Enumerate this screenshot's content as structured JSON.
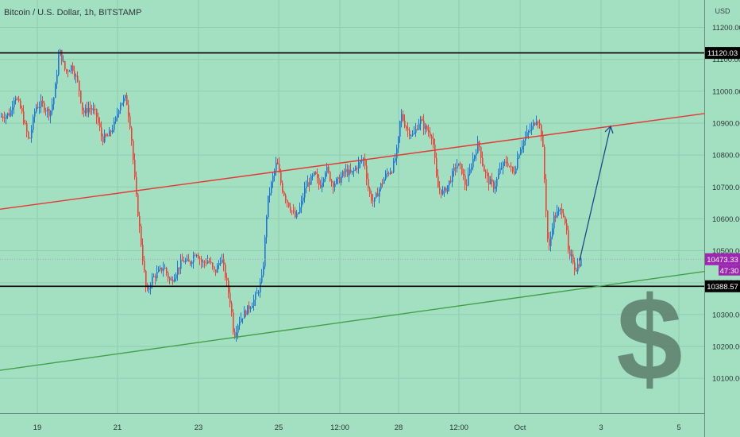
{
  "header": {
    "symbol_label": "Bitcoin / U.S. Dollar, 1h, BITSTAMP"
  },
  "chart_data": {
    "type": "candlestick",
    "symbol": "Bitcoin / U.S. Dollar, 1h, BITSTAMP",
    "currency": "USD",
    "ylim": [
      10035,
      11230
    ],
    "y_ticks": [
      10100,
      10200,
      10300,
      10400,
      10500,
      10600,
      10700,
      10800,
      10900,
      11000,
      11100,
      11200
    ],
    "y_tick_labels": [
      "10100.00",
      "10200.00",
      "10300.00",
      "10400.00",
      "10500.00",
      "10600.00",
      "10700.00",
      "10800.00",
      "10900.00",
      "11000.00",
      "11100.00",
      "11200.00"
    ],
    "x_tick_labels": [
      "19",
      "21",
      "23",
      "25",
      "12:00",
      "28",
      "12:00",
      "Oct",
      "3",
      "5"
    ],
    "grid": true,
    "horizontal_levels": [
      {
        "value": 11120.03,
        "label": "11120.03",
        "color": "#000000"
      },
      {
        "value": 10388.57,
        "label": "10388.57",
        "color": "#000000"
      }
    ],
    "current_price": {
      "value": 10473.33,
      "label": "10473.33",
      "countdown": "47:30",
      "color": "#9c27b0"
    },
    "trend_lines": [
      {
        "color": "#e53935",
        "start": {
          "value": 10630,
          "date": "Sep 17"
        },
        "end": {
          "value": 10930,
          "date": "Oct 6"
        }
      },
      {
        "color": "#43a047",
        "start": {
          "value": 10125,
          "date": "Sep 17"
        },
        "end": {
          "value": 10435,
          "date": "Oct 6"
        }
      }
    ],
    "annotation": {
      "type": "arrow",
      "color": "#1a4a8a",
      "from": 10470,
      "to": 10890
    },
    "watermark_symbol": "$",
    "bull_color": "#1f77d4",
    "bear_color": "#e8453c"
  }
}
